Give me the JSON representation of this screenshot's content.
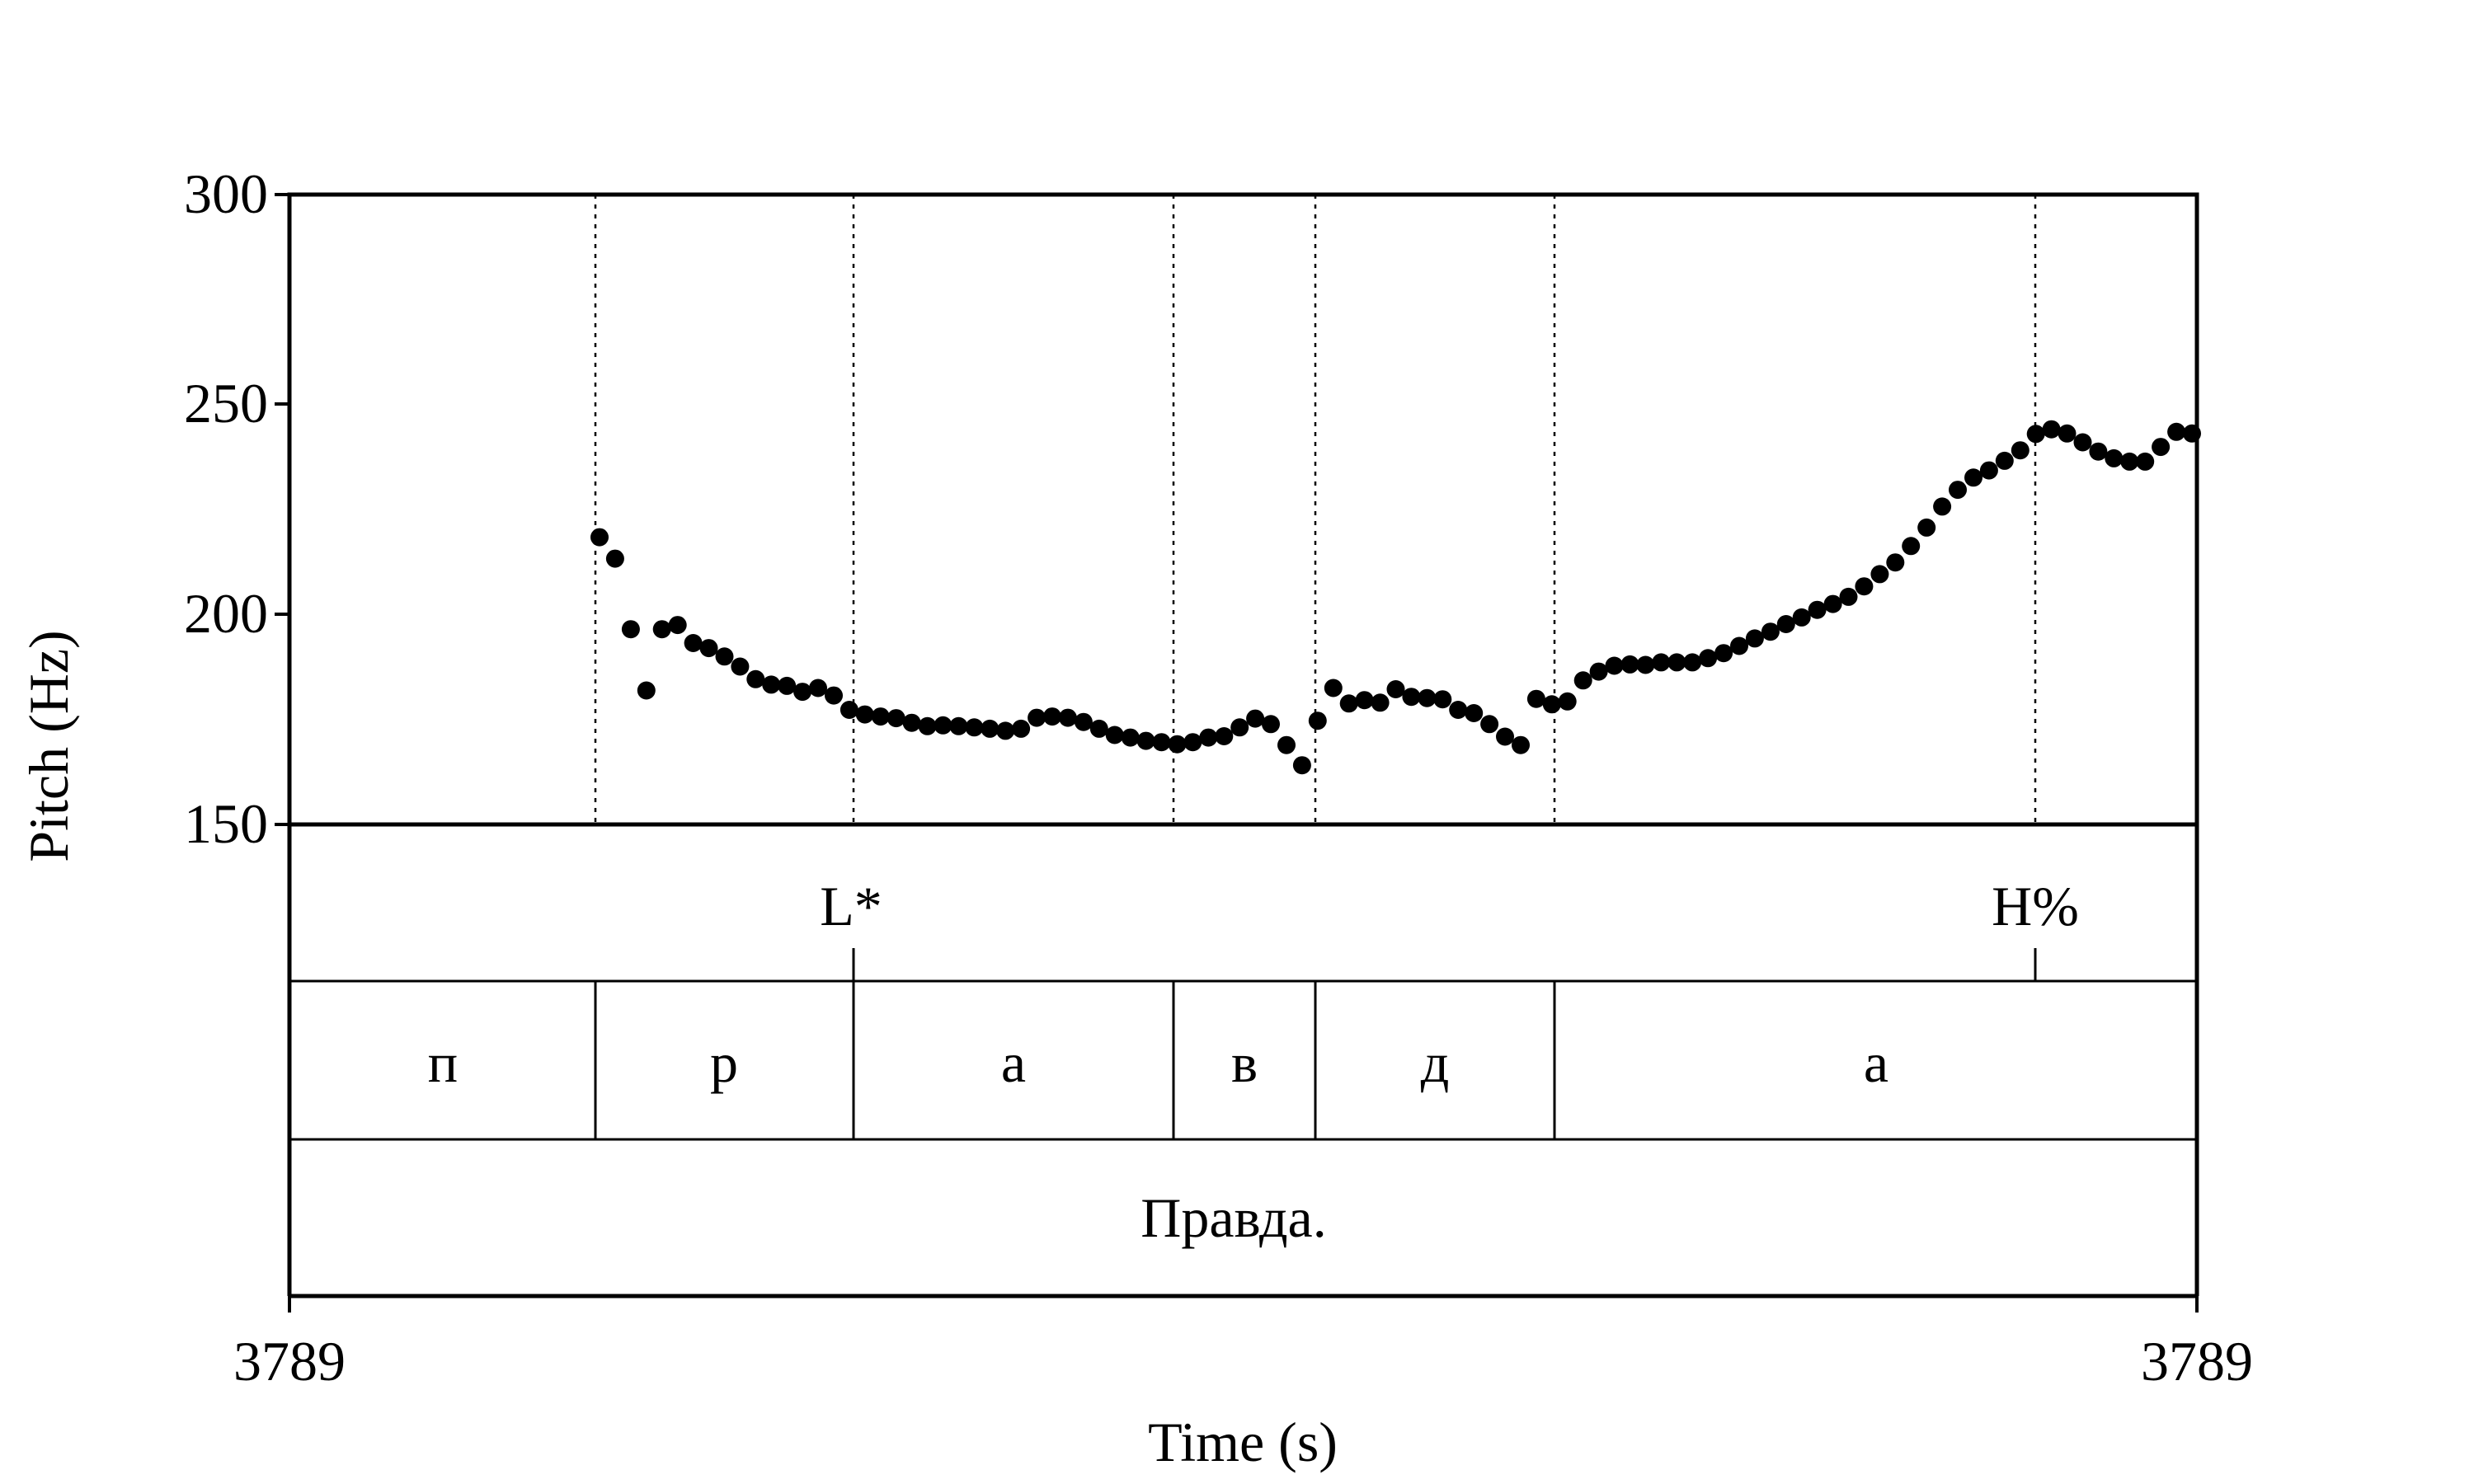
{
  "chart_data": {
    "type": "scatter",
    "xlabel": "Time (s)",
    "ylabel": "Pitch (Hz)",
    "ylim": [
      150,
      300
    ],
    "yticks": [
      "300",
      "250",
      "200",
      "150"
    ],
    "x_start_label": "3789",
    "x_end_label": "3789",
    "grid": false,
    "tiers": {
      "tones": [
        {
          "label": "L*"
        },
        {
          "label": "H%"
        }
      ],
      "segments": [
        {
          "label": "п"
        },
        {
          "label": "р"
        },
        {
          "label": "а"
        },
        {
          "label": "в"
        },
        {
          "label": "д"
        },
        {
          "label": "а"
        }
      ],
      "word": {
        "label": "Правда."
      }
    },
    "pitch_hz": [
      218.4,
      213.3,
      196.5,
      181.9,
      196.5,
      197.5,
      193.2,
      192.0,
      190.0,
      187.6,
      184.6,
      183.3,
      183.0,
      181.6,
      182.5,
      180.7,
      177.3,
      176.2,
      175.7,
      175.3,
      174.2,
      173.4,
      173.6,
      173.4,
      173.1,
      172.8,
      172.3,
      172.8,
      175.4,
      175.7,
      175.4,
      174.4,
      172.8,
      171.3,
      170.7,
      169.9,
      169.6,
      169.1,
      169.6,
      170.7,
      171.0,
      173.1,
      175.2,
      173.9,
      168.9,
      164.1,
      174.7,
      182.5,
      178.8,
      179.6,
      179.0,
      182.2,
      180.4,
      180.1,
      179.8,
      177.3,
      176.5,
      173.9,
      170.9,
      168.9,
      179.9,
      178.6,
      179.3,
      184.3,
      186.4,
      187.8,
      188.1,
      188.0,
      188.6,
      188.6,
      188.6,
      189.6,
      190.8,
      192.5,
      194.3,
      195.9,
      197.7,
      199.3,
      201.1,
      202.5,
      204.2,
      206.7,
      209.6,
      212.4,
      216.3,
      220.7,
      225.7,
      229.7,
      232.6,
      234.3,
      236.6,
      239.1,
      243.0,
      244.1,
      243.1,
      241.0,
      238.8,
      237.2,
      236.4,
      236.4,
      239.9,
      243.5,
      243.1
    ]
  }
}
